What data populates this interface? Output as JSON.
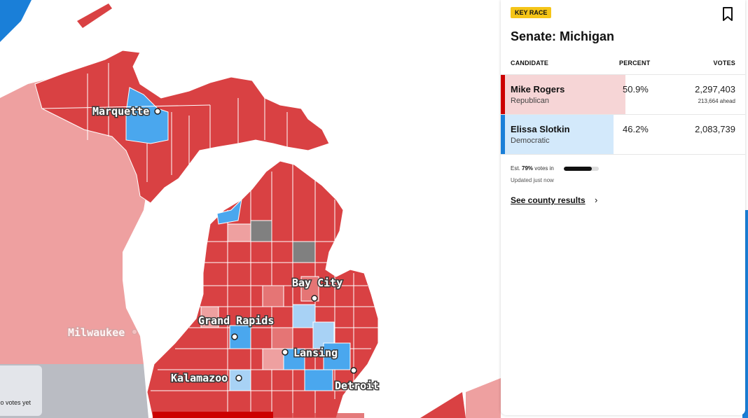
{
  "map": {
    "cities": [
      "Marquette",
      "Bay City",
      "Grand Rapids",
      "Lansing",
      "Kalamazoo",
      "Detroit",
      "Milwaukee"
    ],
    "colors": {
      "republican": "#d94143",
      "republican_light": "#e57575",
      "republican_outside": "#eea0a0",
      "democrat": "#4aa7ee",
      "democrat_light": "#a8d2f5",
      "no_data": "#808080",
      "water": "#ffffff",
      "outside": "#babcc3"
    },
    "legend": {
      "no_votes_label": "No votes yet"
    }
  },
  "panel": {
    "badge": "KEY RACE",
    "title": "Senate: Michigan",
    "columns": {
      "candidate": "CANDIDATE",
      "percent": "PERCENT",
      "votes": "VOTES"
    },
    "candidates": [
      {
        "name": "Mike Rogers",
        "party": "Republican",
        "percent": "50.9%",
        "percent_value": 50.9,
        "votes": "2,297,403",
        "ahead": "213,664 ahead",
        "color": "#cc0000",
        "fill": "#f6d5d6"
      },
      {
        "name": "Elissa Slotkin",
        "party": "Democratic",
        "percent": "46.2%",
        "percent_value": 46.2,
        "votes": "2,083,739",
        "ahead": "",
        "color": "#1a7fd8",
        "fill": "#d3e9fb"
      }
    ],
    "est_prefix": "Est.",
    "est_value": "79%",
    "est_value_number": 79,
    "est_suffix": "votes in",
    "updated": "Updated just now",
    "county_link": "See county results",
    "bookmark_icon": "bookmark-icon",
    "chevron_icon": "chevron-right-icon"
  }
}
